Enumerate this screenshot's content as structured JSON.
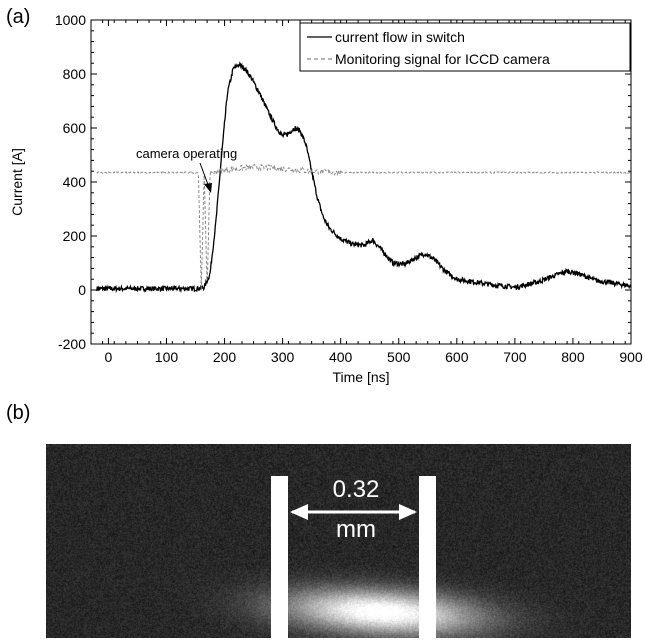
{
  "panels": {
    "a": "(a)",
    "b": "(b)"
  },
  "chart_data": {
    "type": "line",
    "xlabel": "Time [ns]",
    "ylabel": "Current [A]",
    "xlim": [
      -30,
      900
    ],
    "ylim": [
      -200,
      1000
    ],
    "xticks": [
      0,
      100,
      200,
      300,
      400,
      500,
      600,
      700,
      800,
      900
    ],
    "yticks": [
      -200,
      0,
      200,
      400,
      600,
      800,
      1000
    ],
    "legend_position": "top-right",
    "annotation": "camera operating",
    "series": [
      {
        "name": "current flow in switch",
        "style": "solid",
        "color": "#000000",
        "x": [
          -20,
          0,
          50,
          100,
          150,
          165,
          175,
          185,
          195,
          205,
          215,
          225,
          235,
          245,
          260,
          275,
          290,
          300,
          310,
          320,
          330,
          340,
          350,
          360,
          370,
          380,
          390,
          400,
          420,
          440,
          455,
          470,
          490,
          510,
          530,
          545,
          560,
          580,
          600,
          630,
          660,
          700,
          740,
          770,
          790,
          810,
          840,
          870,
          900
        ],
        "y": [
          5,
          5,
          5,
          5,
          5,
          10,
          60,
          250,
          500,
          730,
          820,
          835,
          820,
          790,
          730,
          660,
          600,
          570,
          580,
          600,
          590,
          540,
          440,
          340,
          270,
          230,
          210,
          190,
          170,
          165,
          185,
          150,
          100,
          95,
          120,
          135,
          115,
          70,
          40,
          30,
          20,
          10,
          30,
          55,
          70,
          60,
          35,
          25,
          15
        ]
      },
      {
        "name": "Monitoring signal for ICCD camera",
        "style": "dashed",
        "color": "#888888",
        "x": [
          -20,
          0,
          50,
          100,
          150,
          155,
          160,
          165,
          170,
          175,
          180,
          200,
          250,
          300,
          350,
          400,
          500,
          600,
          700,
          800,
          900
        ],
        "y": [
          435,
          435,
          435,
          435,
          435,
          435,
          0,
          440,
          0,
          440,
          435,
          445,
          455,
          450,
          440,
          435,
          435,
          435,
          435,
          435,
          435
        ]
      }
    ]
  },
  "image_panel": {
    "scale_value": "0.32",
    "scale_unit": "mm"
  }
}
